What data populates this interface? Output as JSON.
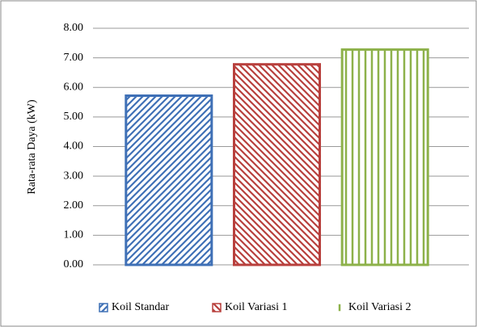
{
  "chart_data": {
    "type": "bar",
    "ylabel": "Rata-rata Daya (kW)",
    "categories": [
      null
    ],
    "series": [
      {
        "name": "Koil Standar",
        "color": "#3f70b6",
        "values": [
          5.72
        ]
      },
      {
        "name": "Koil Variasi 1",
        "color": "#b8403d",
        "values": [
          6.78
        ]
      },
      {
        "name": "Koil Variasi 2",
        "color": "#8db14a",
        "values": [
          7.28
        ]
      }
    ],
    "ylim": [
      0,
      8
    ],
    "yticks": [
      {
        "value": 0,
        "label": "0.00"
      },
      {
        "value": 1,
        "label": "1.00"
      },
      {
        "value": 2,
        "label": "2.00"
      },
      {
        "value": 3,
        "label": "3.00"
      },
      {
        "value": 4,
        "label": "4.00"
      },
      {
        "value": 5,
        "label": "5.00"
      },
      {
        "value": 6,
        "label": "6.00"
      },
      {
        "value": 7,
        "label": "7.00"
      },
      {
        "value": 8,
        "label": "8.00"
      }
    ],
    "grid": true,
    "legend": "bottom"
  }
}
